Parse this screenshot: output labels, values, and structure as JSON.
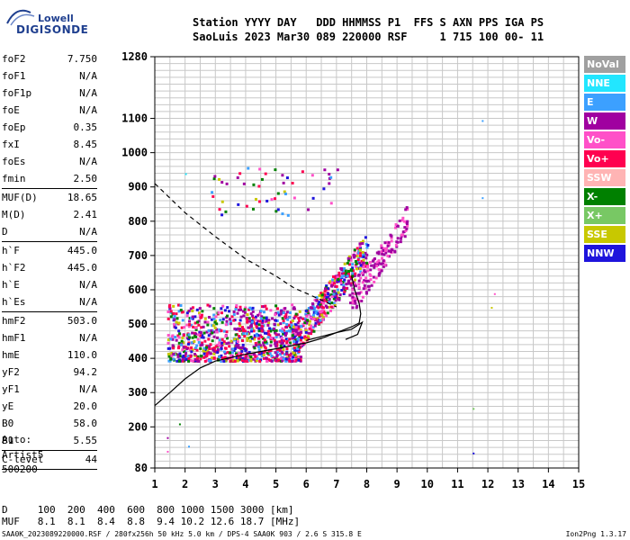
{
  "logo": {
    "brand": "Lowell",
    "product": "DIGISONDE"
  },
  "header": {
    "line1": "Station YYYY DAY   DDD HHMMSS P1  FFS S AXN PPS IGA PS",
    "line2": "SaoLuis 2023 Mar30 089 220000 RSF     1 715 100 00- 11"
  },
  "params": {
    "group1": [
      {
        "k": "foF2",
        "v": "7.750"
      },
      {
        "k": "foF1",
        "v": "N/A"
      },
      {
        "k": "foF1p",
        "v": "N/A"
      },
      {
        "k": "foE",
        "v": "N/A"
      },
      {
        "k": "foEp",
        "v": "0.35"
      },
      {
        "k": "fxI",
        "v": "8.45"
      },
      {
        "k": "foEs",
        "v": "N/A"
      },
      {
        "k": "fmin",
        "v": "2.50"
      }
    ],
    "group2": [
      {
        "k": "MUF(D)",
        "v": "18.65"
      },
      {
        "k": "M(D)",
        "v": "2.41"
      },
      {
        "k": "D",
        "v": "N/A"
      }
    ],
    "group3": [
      {
        "k": "h`F",
        "v": "445.0"
      },
      {
        "k": "h`F2",
        "v": "445.0"
      },
      {
        "k": "h`E",
        "v": "N/A"
      },
      {
        "k": "h`Es",
        "v": "N/A"
      }
    ],
    "group4": [
      {
        "k": "hmF2",
        "v": "503.0"
      },
      {
        "k": "hmF1",
        "v": "N/A"
      },
      {
        "k": "hmE",
        "v": "110.0"
      },
      {
        "k": "yF2",
        "v": "94.2"
      },
      {
        "k": "yF1",
        "v": "N/A"
      },
      {
        "k": "yE",
        "v": "20.0"
      },
      {
        "k": "B0",
        "v": "58.0"
      },
      {
        "k": "B1",
        "v": "5.55"
      }
    ],
    "group5": [
      {
        "k": "C-level",
        "v": "44"
      }
    ]
  },
  "auto": {
    "l1": "Auto:",
    "l2": "Artist5",
    "l3": "500200"
  },
  "legend": [
    {
      "label": "NoVal",
      "color": "#a0a0a0"
    },
    {
      "label": "NNE",
      "color": "#22e6ff"
    },
    {
      "label": "E",
      "color": "#3ca0ff"
    },
    {
      "label": "W",
      "color": "#a000a0"
    },
    {
      "label": "Vo-",
      "color": "#ff50c8"
    },
    {
      "label": "Vo+",
      "color": "#ff0050"
    },
    {
      "label": "SSW",
      "color": "#ffb4b4"
    },
    {
      "label": "X-",
      "color": "#008000"
    },
    {
      "label": "X+",
      "color": "#78c864"
    },
    {
      "label": "SSE",
      "color": "#c8c800"
    },
    {
      "label": "NNW",
      "color": "#1e14dc"
    }
  ],
  "mufline": {
    "d_line": "D     100  200  400  600  800 1000 1500 3000 [km]",
    "muf_line": "MUF   8.1  8.1  8.4  8.8  9.4 10.2 12.6 18.7 [MHz]"
  },
  "footer": {
    "left": "SAA0K_2023089220000.RSF / 280fx256h 50 kHz 5.0 km / DPS-4 SAA0K 903 / 2.6 S 315.8 E",
    "right": "Ion2Png 1.3.17"
  },
  "chart_data": {
    "type": "scatter",
    "title": "",
    "xlabel": "",
    "ylabel": "",
    "xlim": [
      1,
      15
    ],
    "ylim": [
      80,
      1280
    ],
    "x_ticks": [
      1,
      2,
      3,
      4,
      5,
      6,
      7,
      8,
      9,
      10,
      11,
      12,
      13,
      14,
      15
    ],
    "y_ticks": [
      80,
      200,
      300,
      400,
      500,
      600,
      700,
      800,
      900,
      1000,
      1100,
      1280
    ],
    "grid": true,
    "clusters": [
      {
        "name": "F-trace main",
        "xmin": 1.4,
        "xmax": 5.8,
        "ymin": 395,
        "ymax": 560
      },
      {
        "name": "F-trace upper",
        "xmin": 5.5,
        "xmax": 8.0,
        "ymin": 430,
        "ymax": 720
      },
      {
        "name": "spread top",
        "xmin": 7.4,
        "xmax": 9.3,
        "ymin": 560,
        "ymax": 800
      },
      {
        "name": "multihop",
        "xmin": 2.8,
        "xmax": 7.0,
        "ymin": 820,
        "ymax": 960
      }
    ],
    "profile_solid": [
      [
        1.0,
        262
      ],
      [
        1.5,
        300
      ],
      [
        2.0,
        340
      ],
      [
        2.5,
        372
      ],
      [
        3.0,
        392
      ],
      [
        4.0,
        412
      ],
      [
        5.0,
        428
      ],
      [
        6.0,
        445
      ],
      [
        6.5,
        458
      ],
      [
        7.0,
        475
      ],
      [
        7.5,
        492
      ],
      [
        7.75,
        503
      ],
      [
        7.8,
        530
      ],
      [
        7.75,
        560
      ],
      [
        7.6,
        600
      ],
      [
        7.5,
        640
      ]
    ],
    "profile_solid_low": [
      [
        6.0,
        452
      ],
      [
        7.0,
        475
      ],
      [
        7.5,
        485
      ],
      [
        7.85,
        505
      ],
      [
        7.7,
        470
      ],
      [
        7.3,
        455
      ]
    ],
    "profile_dashed": [
      [
        1.0,
        910
      ],
      [
        2.0,
        825
      ],
      [
        3.0,
        755
      ],
      [
        4.0,
        690
      ],
      [
        5.0,
        640
      ],
      [
        5.6,
        605
      ],
      [
        6.0,
        590
      ],
      [
        6.5,
        570
      ],
      [
        7.0,
        550
      ]
    ]
  }
}
